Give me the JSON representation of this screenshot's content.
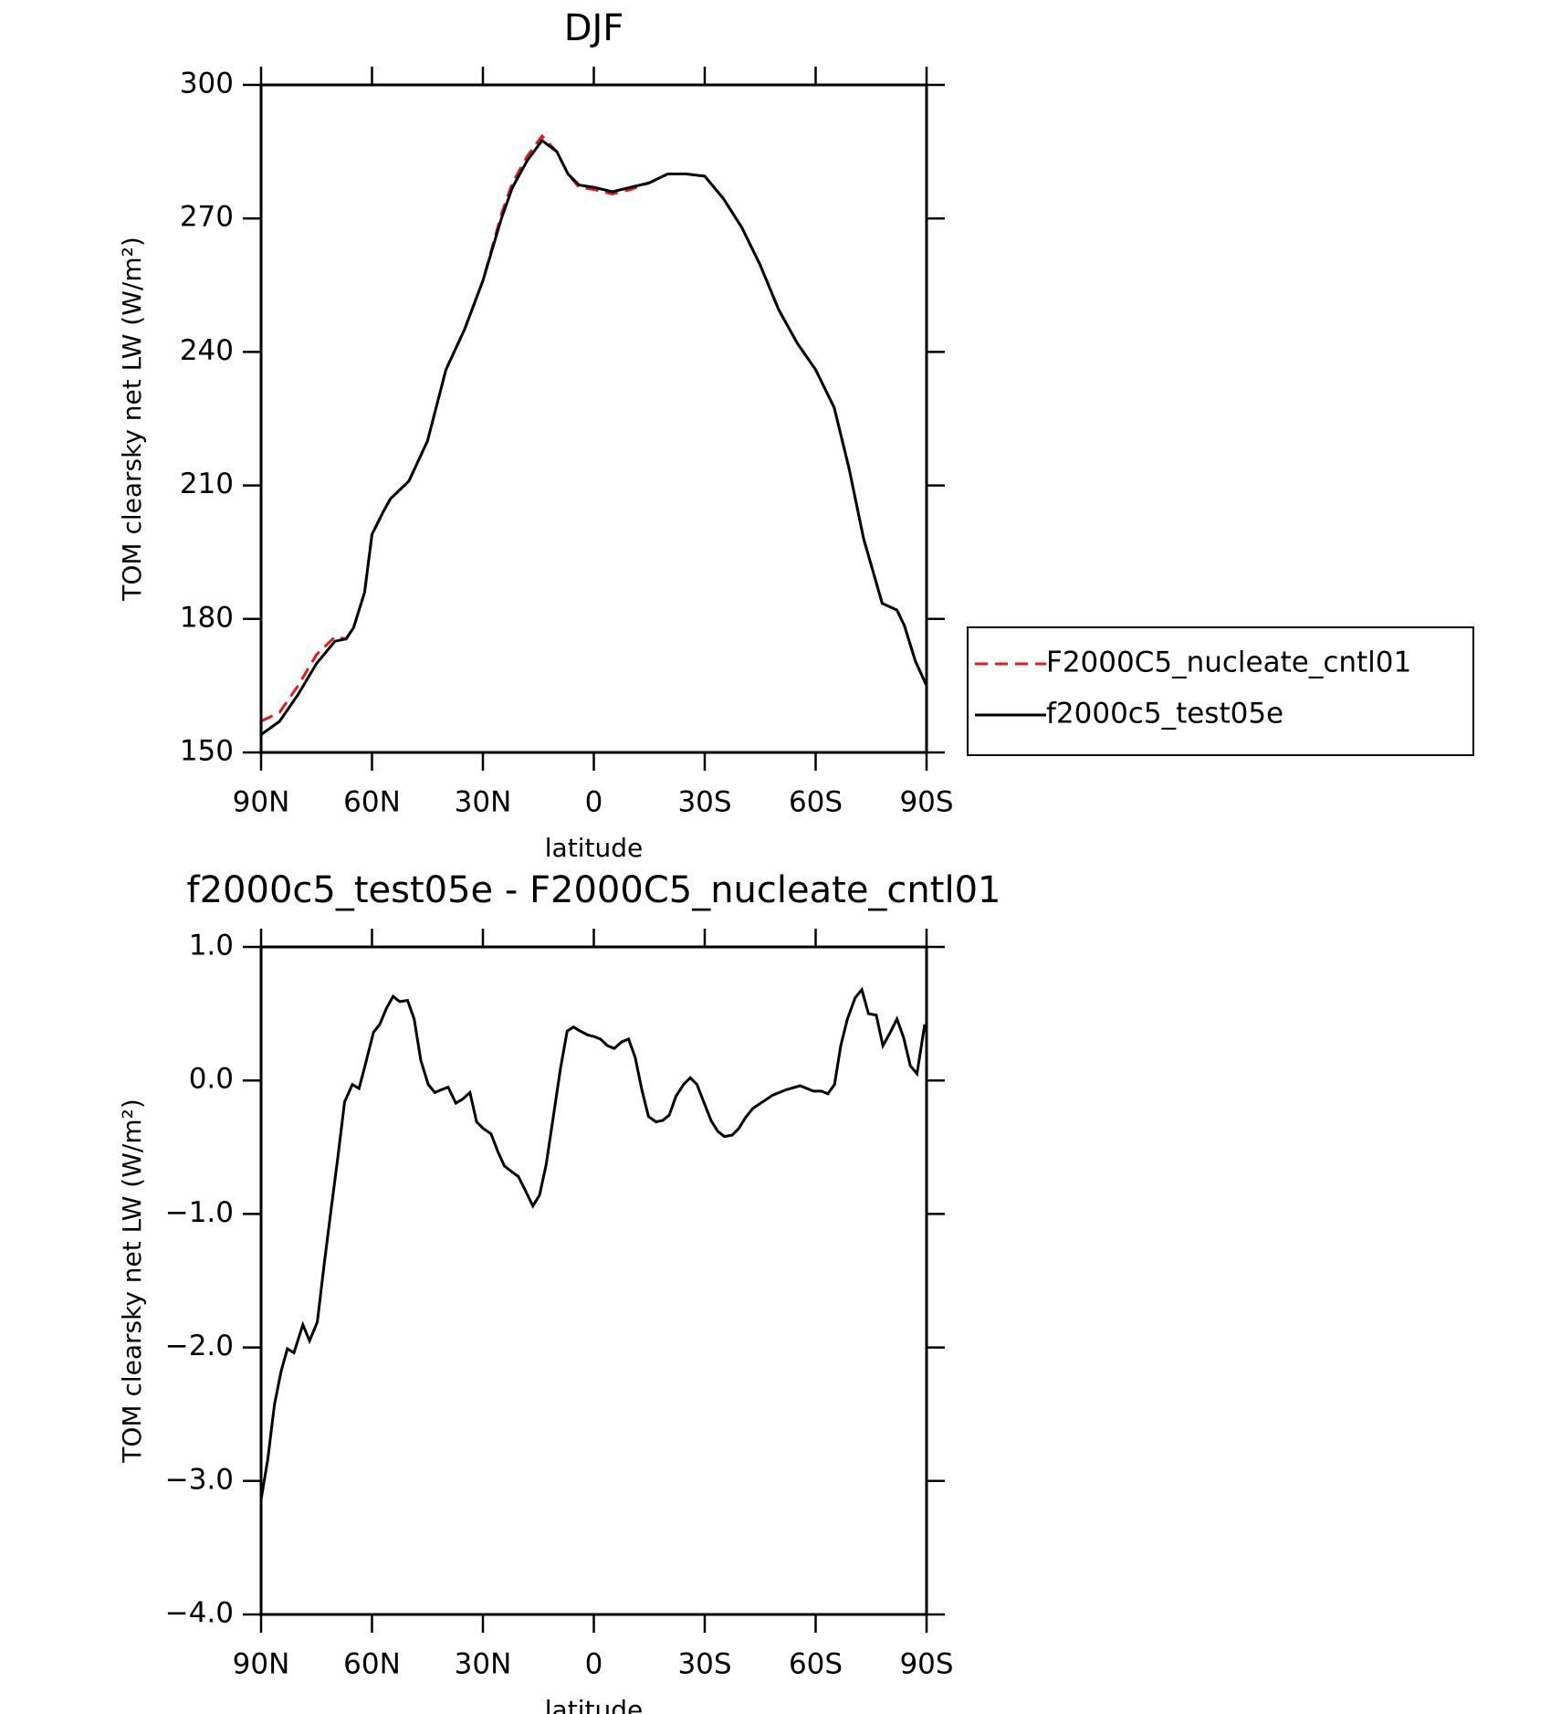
{
  "chart_data": [
    {
      "type": "line",
      "title": "DJF",
      "x_label": "latitude",
      "y_label": "TOM clearsky net LW (W/m²)",
      "x": [
        90,
        85,
        80,
        75,
        70,
        67,
        65,
        62,
        60,
        57,
        55,
        50,
        45,
        40,
        35,
        30,
        25,
        22,
        18,
        14,
        10,
        7,
        4,
        0,
        -5,
        -10,
        -15,
        -20,
        -25,
        -30,
        -35,
        -40,
        -45,
        -50,
        -55,
        -60,
        -65,
        -69,
        -73,
        -78,
        -82,
        -84,
        -87,
        -90
      ],
      "series": [
        {
          "name": "F2000C5_nucleate_cntl01",
          "color": "#e41a1c",
          "style": "dashed",
          "values": [
            157,
            159,
            165,
            172,
            176,
            175.5,
            178,
            186,
            199,
            204,
            207,
            211,
            220,
            236,
            245,
            256,
            271,
            278,
            284,
            288.5,
            285,
            280,
            277,
            276.5,
            275.5,
            276.5,
            278,
            280,
            280,
            279.5,
            274.5,
            268,
            259.5,
            249.5,
            242,
            236,
            227.5,
            214,
            198,
            183.5,
            182,
            178.5,
            170.5,
            165
          ]
        },
        {
          "name": "f2000c5_test05e",
          "color": "#000000",
          "style": "solid",
          "values": [
            154,
            157,
            163,
            170,
            175,
            175.5,
            178,
            186,
            199,
            204,
            207,
            211,
            220,
            236,
            245,
            256,
            270,
            277,
            283,
            287.5,
            285,
            280,
            277.5,
            277,
            276,
            277,
            278,
            280,
            280,
            279.5,
            274.5,
            268,
            259.5,
            249.5,
            242,
            236,
            227.5,
            214,
            198,
            183.5,
            182,
            178.5,
            170.5,
            165
          ]
        }
      ],
      "xlim": [
        90,
        -90
      ],
      "xticks": [
        {
          "value": 90,
          "label": "90N"
        },
        {
          "value": 60,
          "label": "60N"
        },
        {
          "value": 30,
          "label": "30N"
        },
        0,
        {
          "value": -30,
          "label": "30S"
        },
        {
          "value": -60,
          "label": "60S"
        },
        {
          "value": -90,
          "label": "90S"
        }
      ],
      "ylim": [
        150,
        300
      ],
      "yticks": [
        150,
        180,
        210,
        240,
        270,
        300
      ],
      "legend": "outside right"
    },
    {
      "type": "line",
      "title": "f2000c5_test05e - F2000C5_nucleate_cntl01",
      "x_label": "latitude",
      "y_label": "TOM clearsky net LW (W/m²)",
      "x": [
        90,
        88.2,
        86.4,
        84.6,
        82.9,
        81.1,
        78.7,
        76.9,
        74.8,
        73,
        71.3,
        69.2,
        67.4,
        65.3,
        63.5,
        61.7,
        59.6,
        57.9,
        56.1,
        54.3,
        52.5,
        50.4,
        48.6,
        46.8,
        44.8,
        43,
        41.2,
        39.4,
        37.3,
        35.5,
        33.5,
        31.7,
        29.9,
        27.8,
        26,
        24.2,
        22.4,
        20.4,
        18.6,
        16.5,
        14.7,
        12.9,
        11.1,
        9,
        7.2,
        5.5,
        3.7,
        1.6,
        0,
        -1.8,
        -3.7,
        -5.5,
        -7.6,
        -9.4,
        -11.2,
        -13,
        -14.8,
        -16.8,
        -18.6,
        -20.4,
        -22.2,
        -24.3,
        -26.1,
        -27.9,
        -30,
        -31.7,
        -33.5,
        -35.3,
        -37.4,
        -39.2,
        -41,
        -43,
        -48.4,
        -52,
        -55.8,
        -59.4,
        -61.5,
        -63.3,
        -65.1,
        -66.8,
        -68.6,
        -70.7,
        -72.5,
        -74.3,
        -76.4,
        -78.2,
        -80,
        -82,
        -83.8,
        -85.6,
        -87.4,
        -89.5
      ],
      "values": [
        -3.14,
        -2.84,
        -2.43,
        -2.18,
        -2.01,
        -2.04,
        -1.83,
        -1.95,
        -1.81,
        -1.39,
        -1.02,
        -0.57,
        -0.16,
        -0.03,
        -0.06,
        0.13,
        0.36,
        0.42,
        0.54,
        0.63,
        0.59,
        0.6,
        0.46,
        0.15,
        -0.03,
        -0.09,
        -0.07,
        -0.05,
        -0.17,
        -0.14,
        -0.09,
        -0.31,
        -0.36,
        -0.4,
        -0.53,
        -0.64,
        -0.68,
        -0.72,
        -0.82,
        -0.94,
        -0.86,
        -0.63,
        -0.3,
        0.09,
        0.37,
        0.4,
        0.37,
        0.34,
        0.33,
        0.31,
        0.26,
        0.24,
        0.29,
        0.31,
        0.17,
        -0.07,
        -0.27,
        -0.31,
        -0.3,
        -0.26,
        -0.12,
        -0.03,
        0.02,
        -0.03,
        -0.18,
        -0.3,
        -0.38,
        -0.42,
        -0.41,
        -0.36,
        -0.28,
        -0.21,
        -0.11,
        -0.07,
        -0.04,
        -0.08,
        -0.08,
        -0.1,
        -0.03,
        0.26,
        0.46,
        0.62,
        0.68,
        0.5,
        0.49,
        0.26,
        0.35,
        0.46,
        0.32,
        0.11,
        0.05,
        0.42
      ],
      "color": "#000000",
      "xlim": [
        90,
        -90
      ],
      "xticks": [
        {
          "value": 90,
          "label": "90N"
        },
        {
          "value": 60,
          "label": "60N"
        },
        {
          "value": 30,
          "label": "30N"
        },
        0,
        {
          "value": -30,
          "label": "30S"
        },
        {
          "value": -60,
          "label": "60S"
        },
        {
          "value": -90,
          "label": "90S"
        }
      ],
      "ylim": [
        -4,
        1
      ],
      "yticks": [
        {
          "value": -4,
          "label": "−4.0"
        },
        {
          "value": -3,
          "label": "−3.0"
        },
        {
          "value": -2,
          "label": "−2.0"
        },
        {
          "value": -1,
          "label": "−1.0"
        },
        {
          "value": 0,
          "label": "0.0"
        },
        {
          "value": 1,
          "label": "1.0"
        }
      ]
    }
  ]
}
